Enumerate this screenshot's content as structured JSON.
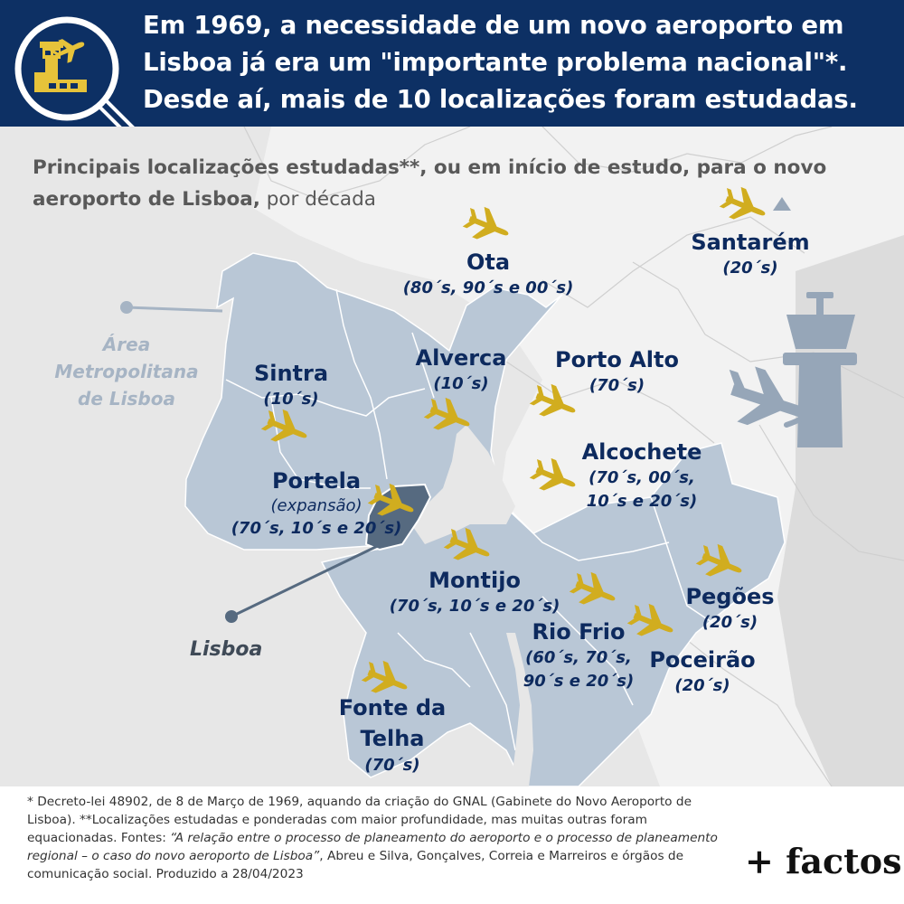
{
  "header": {
    "title": "Em 1969, a necessidade de um novo aeroporto em Lisboa já era um \"importante problema nacional\"*. Desde aí, mais de 10 localizações foram estudadas.",
    "logo_icon": "magnifier-airport-icon"
  },
  "subtitle": {
    "bold": "Principais localizações estudadas**, ou em início de estudo, para o novo aeroporto de Lisboa,",
    "rest": " por década"
  },
  "map": {
    "area_label": [
      "Área",
      "Metropolitana",
      "de Lisboa"
    ],
    "lisboa_label": "Lisboa",
    "plane_icon": "plane-icon",
    "tower_icon": "control-tower-icon",
    "north_marker": "triangle-marker",
    "colors": {
      "metro_area": "#b9c7d6",
      "lisbon": "#566a80",
      "planes": "#d1ad1f",
      "labels": "#0d2a5e"
    }
  },
  "locations": [
    {
      "id": "ota",
      "name": "Ota",
      "note": "",
      "decades": [
        "(80´s, 90´s e 00´s)"
      ]
    },
    {
      "id": "santarem",
      "name": "Santarém",
      "note": "",
      "decades": [
        "(20´s)"
      ]
    },
    {
      "id": "sintra",
      "name": "Sintra",
      "note": "",
      "decades": [
        "(10´s)"
      ]
    },
    {
      "id": "alverca",
      "name": "Alverca",
      "note": "",
      "decades": [
        "(10´s)"
      ]
    },
    {
      "id": "porto-alto",
      "name": "Porto Alto",
      "note": "",
      "decades": [
        "(70´s)"
      ]
    },
    {
      "id": "alcochete",
      "name": "Alcochete",
      "note": "",
      "decades": [
        "(70´s, 00´s,",
        "10´s e 20´s)"
      ]
    },
    {
      "id": "portela",
      "name": "Portela",
      "note": "(expansão)",
      "decades": [
        "(70´s, 10´s e 20´s)"
      ]
    },
    {
      "id": "montijo",
      "name": "Montijo",
      "note": "",
      "decades": [
        "(70´s, 10´s e 20´s)"
      ]
    },
    {
      "id": "pegoes",
      "name": "Pegões",
      "note": "",
      "decades": [
        "(20´s)"
      ]
    },
    {
      "id": "rio-frio",
      "name": "Rio Frio",
      "note": "",
      "decades": [
        "(60´s, 70´s,",
        "90´s e 20´s)"
      ]
    },
    {
      "id": "poceirao",
      "name": "Poceirão",
      "note": "",
      "decades": [
        "(20´s)"
      ]
    },
    {
      "id": "fonte-da-telha",
      "name": "Fonte da Telha",
      "note": "",
      "decades": [
        "(70´s)"
      ]
    }
  ],
  "footnote": {
    "text1": "* Decreto-lei 48902, de 8 de Março de 1969, aquando da criação do GNAL (Gabinete do Novo Aeroporto de Lisboa). **Localizações estudadas e ponderadas com maior profundidade, mas muitas outras foram equacionadas. Fontes: ",
    "italic": "“A relação entre o processo de planeamento do aeroporto e o processo de planeamento regional – o caso do novo aeroporto de Lisboa”",
    "text2": ", Abreu e Silva, Gonçalves, Correia e Marreiros e órgãos de comunicação social. Produzido a 28/04/2023"
  },
  "brand": "+ factos"
}
